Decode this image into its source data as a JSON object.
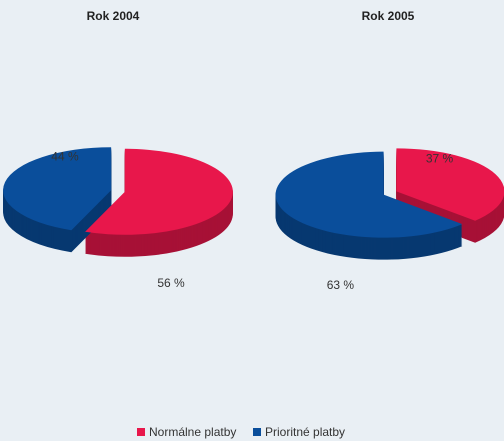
{
  "chart_data": [
    {
      "type": "pie",
      "title": "Rok 2004",
      "categories": [
        "Normálne platby",
        "Prioritné platby"
      ],
      "values": [
        56,
        44
      ],
      "value_labels": [
        "56 %",
        "44 %"
      ],
      "colors": [
        "#e8174b",
        "#0a4e9b"
      ]
    },
    {
      "type": "pie",
      "title": "Rok 2005",
      "categories": [
        "Normálne platby",
        "Prioritné platby"
      ],
      "values": [
        37,
        63
      ],
      "value_labels": [
        "37 %",
        "63 %"
      ],
      "colors": [
        "#e8174b",
        "#0a4e9b"
      ]
    }
  ]
}
